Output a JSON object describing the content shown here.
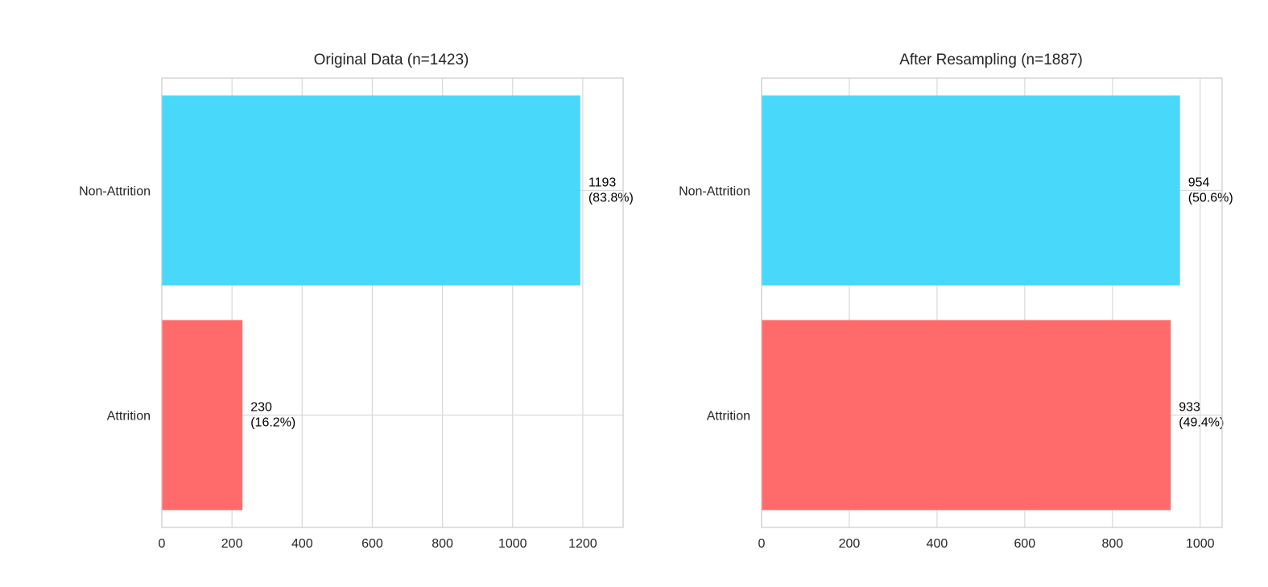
{
  "figure": {
    "background": "#ffffff"
  },
  "chart_data": [
    {
      "type": "bar",
      "orientation": "horizontal",
      "title": "Original Data (n=1423)",
      "categories": [
        "Non-Attrition",
        "Attrition"
      ],
      "values": [
        1193,
        230
      ],
      "bar_colors": [
        "#48D9FA",
        "#FF6B6B"
      ],
      "data_labels": [
        [
          "1193",
          "(83.8%)"
        ],
        [
          "230",
          "(16.2%)"
        ]
      ],
      "xlim": [
        0,
        1315
      ],
      "xticks": [
        0,
        200,
        400,
        600,
        800,
        1000,
        1200
      ],
      "xtick_labels": [
        "0",
        "200",
        "400",
        "600",
        "800",
        "1000",
        "1200"
      ],
      "grid": true
    },
    {
      "type": "bar",
      "orientation": "horizontal",
      "title": "After Resampling (n=1887)",
      "categories": [
        "Non-Attrition",
        "Attrition"
      ],
      "values": [
        954,
        933
      ],
      "bar_colors": [
        "#48D9FA",
        "#FF6B6B"
      ],
      "data_labels": [
        [
          "954",
          "(50.6%)"
        ],
        [
          "933",
          "(49.4%)"
        ]
      ],
      "xlim": [
        0,
        1050
      ],
      "xticks": [
        0,
        200,
        400,
        600,
        800,
        1000
      ],
      "xtick_labels": [
        "0",
        "200",
        "400",
        "600",
        "800",
        "1000"
      ],
      "grid": true
    }
  ]
}
